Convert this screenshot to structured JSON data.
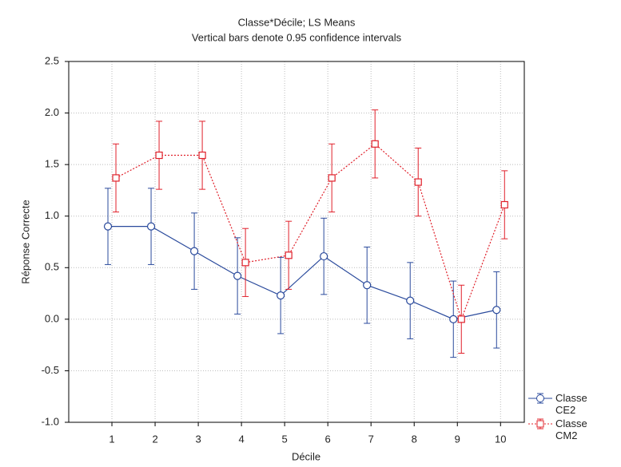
{
  "chart_data": {
    "type": "errorbar_line",
    "title": "Classe*Décile; LS Means",
    "subtitle": "Vertical bars denote 0.95 confidence intervals",
    "x_label": "Décile",
    "y_label": "Réponse Correcte",
    "x": [
      1,
      2,
      3,
      4,
      5,
      6,
      7,
      8,
      9,
      10
    ],
    "xlim": [
      0,
      10.55
    ],
    "xticks": [
      1,
      2,
      3,
      4,
      5,
      6,
      7,
      8,
      9,
      10
    ],
    "ylim": [
      -1.0,
      2.5
    ],
    "yticks": [
      {
        "value": -1,
        "label": "-1.0"
      },
      {
        "value": -0.5,
        "label": "-0.5"
      },
      {
        "value": 0,
        "label": "0.0"
      },
      {
        "value": 0.5,
        "label": "0.5"
      },
      {
        "value": 1,
        "label": "1.0"
      },
      {
        "value": 1.5,
        "label": "1.5"
      },
      {
        "value": 2,
        "label": "2.0"
      },
      {
        "value": 2.5,
        "label": "2.5"
      }
    ],
    "grid": true,
    "legend": "right",
    "series": [
      {
        "name": "Classe CE2",
        "color": "#2a4a9c",
        "line_style": "solid",
        "marker": "circle",
        "values": [
          0.9,
          0.9,
          0.66,
          0.42,
          0.23,
          0.61,
          0.33,
          0.18,
          0.0,
          0.09
        ],
        "errors": [
          0.37,
          0.37,
          0.37,
          0.37,
          0.37,
          0.37,
          0.37,
          0.37,
          0.37,
          0.37
        ]
      },
      {
        "name": "Classe CM2",
        "color": "#e0202a",
        "line_style": "dotted",
        "marker": "square",
        "values": [
          1.37,
          1.59,
          1.59,
          0.55,
          0.62,
          1.37,
          1.7,
          1.33,
          0.0,
          1.11
        ],
        "errors": [
          0.33,
          0.33,
          0.33,
          0.33,
          0.33,
          0.33,
          0.33,
          0.33,
          0.33,
          0.33
        ]
      }
    ]
  }
}
